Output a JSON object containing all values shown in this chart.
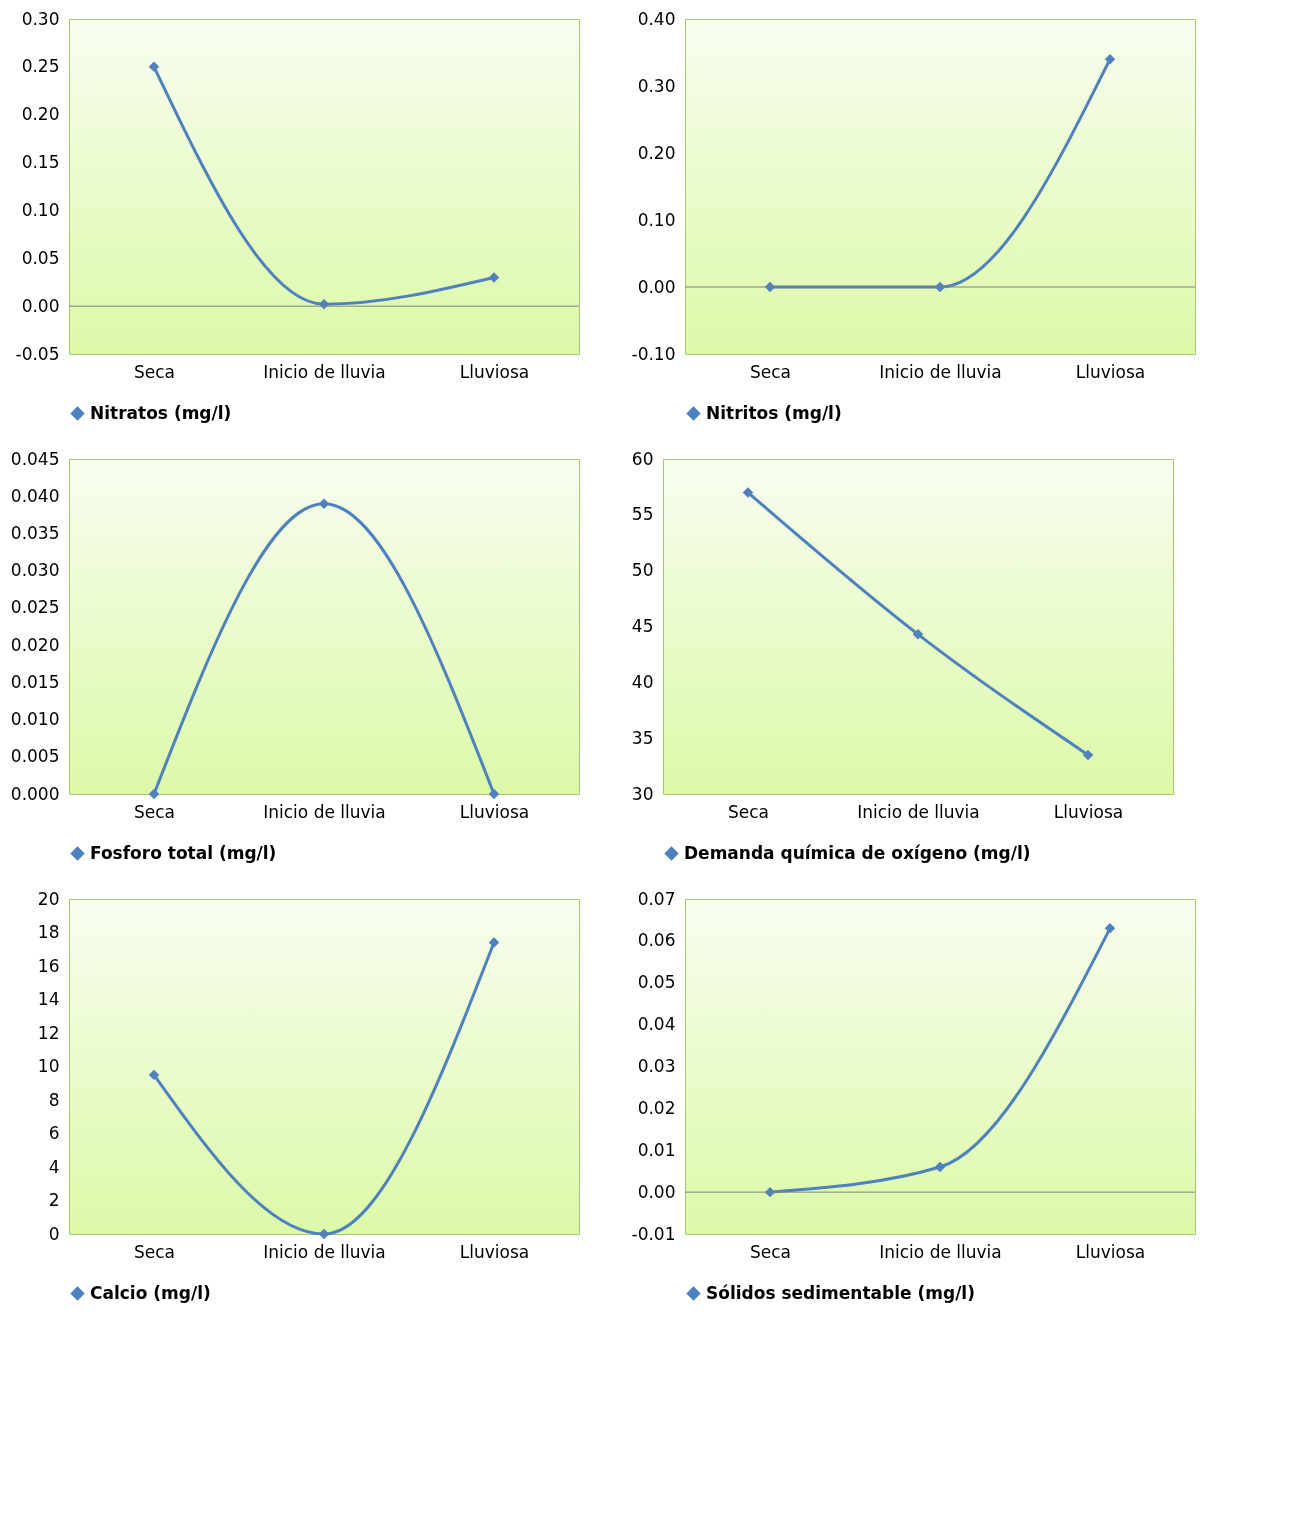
{
  "chart_data": [
    {
      "type": "line",
      "categories": [
        "Seca",
        "Inicio de lluvia",
        "Lluviosa"
      ],
      "series": [
        {
          "name": "Nitratos (mg/l)",
          "color": "#4f81bd",
          "values": [
            0.25,
            0.002,
            0.03
          ]
        }
      ],
      "ylim": [
        -0.05,
        0.3
      ],
      "yticks": [
        {
          "value": -0.05,
          "label": "-0.05"
        },
        {
          "value": 0,
          "label": "0.00"
        },
        {
          "value": 0.05,
          "label": "0.05"
        },
        {
          "value": 0.1,
          "label": "0.10"
        },
        {
          "value": 0.15,
          "label": "0.15"
        },
        {
          "value": 0.2,
          "label": "0.20"
        },
        {
          "value": 0.25,
          "label": "0.25"
        },
        {
          "value": 0.3,
          "label": "0.30"
        }
      ],
      "ref_lines": [
        {
          "axis": "y",
          "value": 0,
          "color": "#808080"
        }
      ],
      "legend": "bottom",
      "marker": "diamond"
    },
    {
      "type": "line",
      "categories": [
        "Seca",
        "Inicio de lluvia",
        "Lluviosa"
      ],
      "series": [
        {
          "name": "Nitritos  (mg/l)",
          "color": "#4f81bd",
          "values": [
            0,
            0,
            0.34
          ]
        }
      ],
      "ylim": [
        -0.1,
        0.4
      ],
      "yticks": [
        {
          "value": -0.1,
          "label": "-0.10"
        },
        {
          "value": 0,
          "label": "0.00"
        },
        {
          "value": 0.1,
          "label": "0.10"
        },
        {
          "value": 0.2,
          "label": "0.20"
        },
        {
          "value": 0.3,
          "label": "0.30"
        },
        {
          "value": 0.4,
          "label": "0.40"
        }
      ],
      "ref_lines": [
        {
          "axis": "y",
          "value": 0,
          "color": "#808080"
        }
      ],
      "legend": "bottom",
      "marker": "diamond"
    },
    {
      "type": "line",
      "categories": [
        "Seca",
        "Inicio de lluvia",
        "Lluviosa"
      ],
      "series": [
        {
          "name": "Fosforo total (mg/l)",
          "color": "#4f81bd",
          "values": [
            0,
            0.039,
            0
          ]
        }
      ],
      "ylim": [
        0,
        0.045
      ],
      "yticks": [
        {
          "value": 0,
          "label": "0.000"
        },
        {
          "value": 0.005,
          "label": "0.005"
        },
        {
          "value": 0.01,
          "label": "0.010"
        },
        {
          "value": 0.015,
          "label": "0.015"
        },
        {
          "value": 0.02,
          "label": "0.020"
        },
        {
          "value": 0.025,
          "label": "0.025"
        },
        {
          "value": 0.03,
          "label": "0.030"
        },
        {
          "value": 0.035,
          "label": "0.035"
        },
        {
          "value": 0.04,
          "label": "0.040"
        },
        {
          "value": 0.045,
          "label": "0.045"
        }
      ],
      "legend": "bottom",
      "marker": "diamond"
    },
    {
      "type": "line",
      "categories": [
        "Seca",
        "Inicio de lluvia",
        "Lluviosa"
      ],
      "series": [
        {
          "name": "Demanda química de oxígeno (mg/l)",
          "color": "#4f81bd",
          "values": [
            57,
            44.3,
            33.5
          ]
        }
      ],
      "ylim": [
        30,
        60
      ],
      "yticks": [
        30,
        35,
        40,
        45,
        50,
        55,
        60
      ],
      "legend": "bottom",
      "marker": "diamond"
    },
    {
      "type": "line",
      "categories": [
        "Seca",
        "Inicio de lluvia",
        "Lluviosa"
      ],
      "series": [
        {
          "name": "Calcio (mg/l)",
          "color": "#4f81bd",
          "values": [
            9.5,
            0,
            17.4
          ]
        }
      ],
      "ylim": [
        0,
        20
      ],
      "yticks": [
        0,
        2,
        4,
        6,
        8,
        10,
        12,
        14,
        16,
        18,
        20
      ],
      "legend": "bottom",
      "marker": "diamond"
    },
    {
      "type": "line",
      "categories": [
        "Seca",
        "Inicio de lluvia",
        "Lluviosa"
      ],
      "series": [
        {
          "name": "Sólidos sedimentable (mg/l)",
          "color": "#4f81bd",
          "values": [
            0,
            0.006,
            0.063
          ]
        }
      ],
      "ylim": [
        -0.01,
        0.07
      ],
      "yticks": [
        {
          "value": -0.01,
          "label": "-0.01"
        },
        {
          "value": 0,
          "label": "0.00"
        },
        {
          "value": 0.01,
          "label": "0.01"
        },
        {
          "value": 0.02,
          "label": "0.02"
        },
        {
          "value": 0.03,
          "label": "0.03"
        },
        {
          "value": 0.04,
          "label": "0.04"
        },
        {
          "value": 0.05,
          "label": "0.05"
        },
        {
          "value": 0.06,
          "label": "0.06"
        },
        {
          "value": 0.07,
          "label": "0.07"
        }
      ],
      "ref_lines": [
        {
          "axis": "y",
          "value": 0,
          "color": "#808080"
        }
      ],
      "legend": "bottom",
      "marker": "diamond"
    }
  ]
}
